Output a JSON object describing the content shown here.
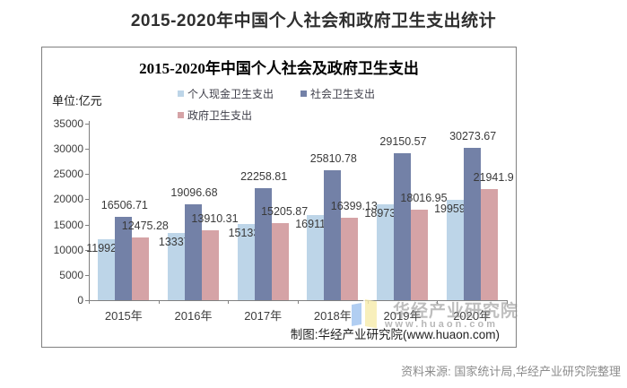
{
  "page": {
    "title": "2015-2020年中国个人社会和政府卫生支出统计",
    "source_note": "资料来源: 国家统计局,华经产业研究院整理"
  },
  "chart": {
    "unit_label": "单位:亿元",
    "caption": "制图:华经产业研究院(www.huaon.com)",
    "watermark": {
      "name": "华经产业研究院",
      "url": "www.huaon.com",
      "logo_colors": {
        "left_page": "#9ec3ef",
        "right_page": "#f7ecab"
      }
    },
    "frame_border_color": "#808080",
    "axis_color": "#808080"
  },
  "chart_data": {
    "type": "bar",
    "title": "2015-2020年中国个人社会及政府卫生支出",
    "unit": "亿元",
    "categories": [
      "2015年",
      "2016年",
      "2017年",
      "2018年",
      "2019年",
      "2020年"
    ],
    "series": [
      {
        "name": "个人现金卫生支出",
        "color": "#bdd5e8",
        "values": [
          11992.65,
          13337.9,
          15133.6,
          16911.99,
          18973.87,
          19959.43
        ]
      },
      {
        "name": "社会卫生支出",
        "color": "#7381a7",
        "values": [
          16506.71,
          19096.68,
          22258.81,
          25810.78,
          29150.57,
          30273.67
        ]
      },
      {
        "name": "政府卫生支出",
        "color": "#d5a3a6",
        "values": [
          12475.28,
          13910.31,
          15205.87,
          16399.13,
          18016.95,
          21941.9
        ]
      }
    ],
    "ylim": [
      0,
      35000
    ],
    "ytick_step": 5000,
    "grid": false,
    "legend_position": "top",
    "value_labels_shown": true
  }
}
